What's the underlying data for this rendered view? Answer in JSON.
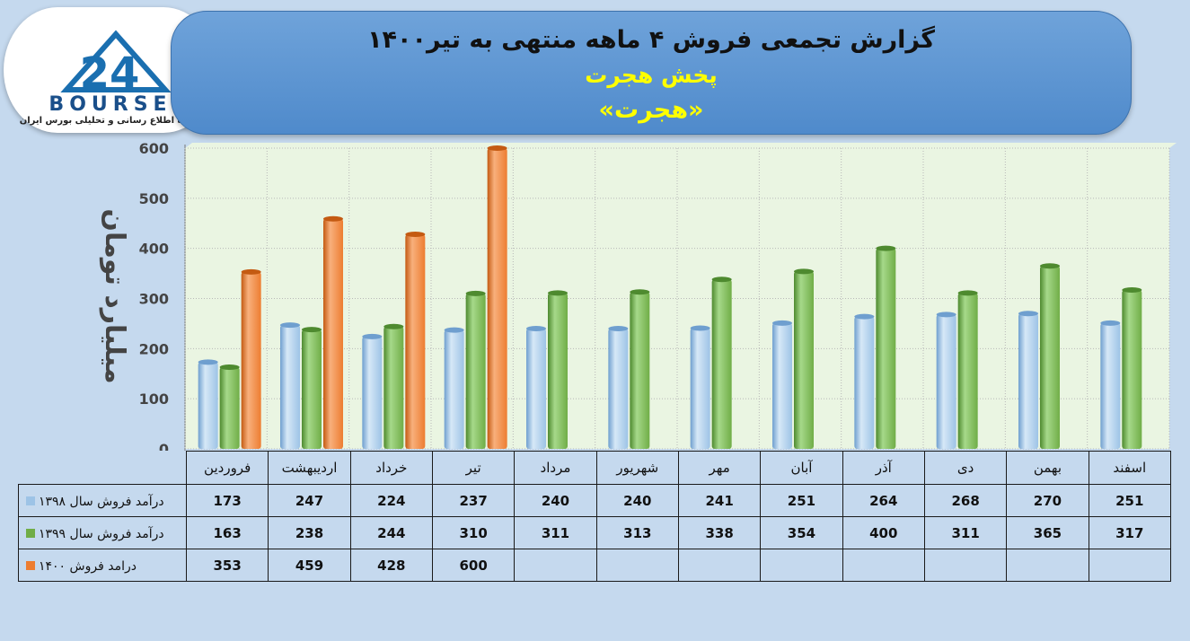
{
  "header": {
    "title": "گزارش تجمعی فروش ۴ ماهه منتهی به تیر۱۴۰۰",
    "subtitle": "پخش هجرت",
    "symbol": "«هجرت»"
  },
  "logo": {
    "word": "BOURSE",
    "number": "24",
    "tagline": "پایگاه اطلاع رسانی و تحلیلی بورس ایران"
  },
  "chart_data": {
    "type": "bar",
    "ylabel": "میلیارد تومان",
    "ylim": [
      0,
      600
    ],
    "yticks": [
      0,
      100,
      200,
      300,
      400,
      500,
      600
    ],
    "grid": true,
    "categories": [
      "فروردین",
      "اردیبهشت",
      "خرداد",
      "تیر",
      "مرداد",
      "شهریور",
      "مهر",
      "آبان",
      "آذر",
      "دی",
      "بهمن",
      "اسفند"
    ],
    "series": [
      {
        "name": "درآمد فروش سال ۱۳۹۸",
        "color": "#9dc3e6",
        "values": [
          173,
          247,
          224,
          237,
          240,
          240,
          241,
          251,
          264,
          268,
          270,
          251
        ]
      },
      {
        "name": "درآمد فروش سال ۱۳۹۹",
        "color": "#70ad47",
        "values": [
          163,
          238,
          244,
          310,
          311,
          313,
          338,
          354,
          400,
          311,
          365,
          317
        ]
      },
      {
        "name": "درامد فروش ۱۴۰۰",
        "color": "#ed7d31",
        "values": [
          353,
          459,
          428,
          600,
          null,
          null,
          null,
          null,
          null,
          null,
          null,
          null
        ]
      }
    ]
  }
}
